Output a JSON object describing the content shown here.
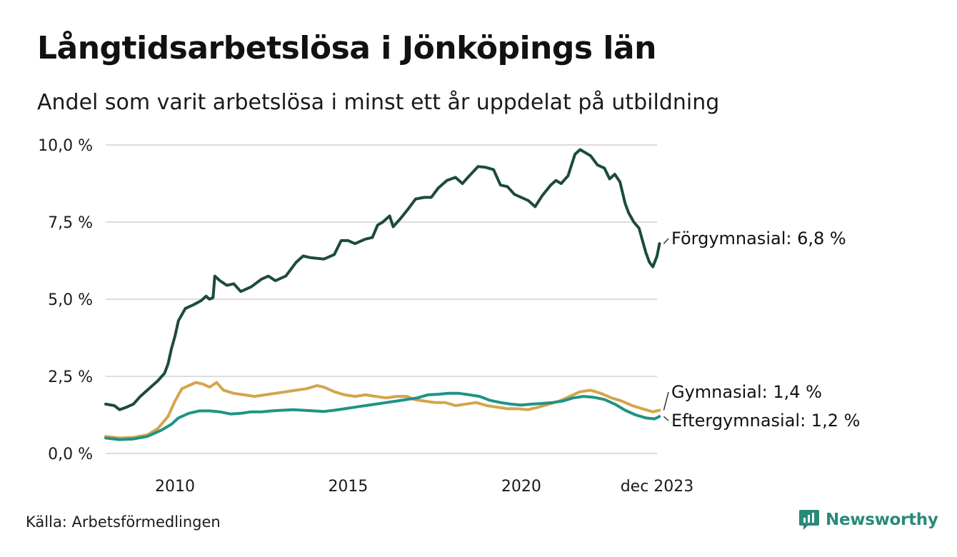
{
  "title": "Långtidsarbetslösa i Jönköpings län",
  "subtitle": "Andel som varit arbetslösa i minst ett år uppdelat på utbildning",
  "source": "Källa: Arbetsförmedlingen",
  "brand": {
    "name": "Newsworthy",
    "icon": "newsworthy-logo-icon",
    "color": "#2a8a78"
  },
  "chart_data": {
    "type": "line",
    "title": "Långtidsarbetslösa i Jönköpings län",
    "xlabel": "",
    "ylabel": "",
    "ylim": [
      0,
      10
    ],
    "xlim": [
      2008.0,
      2023.92
    ],
    "grid": true,
    "y_ticks": [
      {
        "value": 0,
        "label": "0,0 %"
      },
      {
        "value": 2.5,
        "label": "2,5 %"
      },
      {
        "value": 5,
        "label": "5,0 %"
      },
      {
        "value": 7.5,
        "label": "7,5 %"
      },
      {
        "value": 10,
        "label": "10,0 %"
      }
    ],
    "x_ticks": [
      {
        "value": 2010,
        "label": "2010"
      },
      {
        "value": 2015,
        "label": "2015"
      },
      {
        "value": 2020,
        "label": "2020"
      },
      {
        "value": 2023.92,
        "label": "dec 2023"
      }
    ],
    "series": [
      {
        "name": "Förgymnasial",
        "end_label": "Förgymnasial: 6,8 %",
        "color": "#1d4a40",
        "points": [
          [
            2008.0,
            1.6
          ],
          [
            2008.25,
            1.55
          ],
          [
            2008.4,
            1.42
          ],
          [
            2008.6,
            1.5
          ],
          [
            2008.8,
            1.6
          ],
          [
            2009.0,
            1.85
          ],
          [
            2009.25,
            2.1
          ],
          [
            2009.5,
            2.35
          ],
          [
            2009.7,
            2.6
          ],
          [
            2009.8,
            2.9
          ],
          [
            2009.9,
            3.4
          ],
          [
            2010.0,
            3.8
          ],
          [
            2010.1,
            4.3
          ],
          [
            2010.3,
            4.7
          ],
          [
            2010.5,
            4.8
          ],
          [
            2010.75,
            4.95
          ],
          [
            2010.9,
            5.1
          ],
          [
            2011.0,
            5.0
          ],
          [
            2011.1,
            5.05
          ],
          [
            2011.15,
            5.75
          ],
          [
            2011.3,
            5.6
          ],
          [
            2011.5,
            5.45
          ],
          [
            2011.7,
            5.5
          ],
          [
            2011.9,
            5.25
          ],
          [
            2012.2,
            5.4
          ],
          [
            2012.5,
            5.65
          ],
          [
            2012.7,
            5.75
          ],
          [
            2012.9,
            5.6
          ],
          [
            2013.2,
            5.75
          ],
          [
            2013.5,
            6.2
          ],
          [
            2013.7,
            6.4
          ],
          [
            2013.9,
            6.35
          ],
          [
            2014.3,
            6.3
          ],
          [
            2014.6,
            6.45
          ],
          [
            2014.8,
            6.9
          ],
          [
            2015.0,
            6.9
          ],
          [
            2015.2,
            6.8
          ],
          [
            2015.5,
            6.95
          ],
          [
            2015.7,
            7.0
          ],
          [
            2015.85,
            7.4
          ],
          [
            2016.0,
            7.5
          ],
          [
            2016.2,
            7.7
          ],
          [
            2016.3,
            7.35
          ],
          [
            2016.5,
            7.6
          ],
          [
            2016.75,
            7.95
          ],
          [
            2016.95,
            8.25
          ],
          [
            2017.2,
            8.3
          ],
          [
            2017.4,
            8.3
          ],
          [
            2017.6,
            8.6
          ],
          [
            2017.85,
            8.85
          ],
          [
            2018.1,
            8.95
          ],
          [
            2018.3,
            8.75
          ],
          [
            2018.5,
            9.0
          ],
          [
            2018.75,
            9.3
          ],
          [
            2018.95,
            9.28
          ],
          [
            2019.2,
            9.2
          ],
          [
            2019.4,
            8.7
          ],
          [
            2019.6,
            8.65
          ],
          [
            2019.8,
            8.4
          ],
          [
            2020.0,
            8.3
          ],
          [
            2020.2,
            8.2
          ],
          [
            2020.4,
            8.0
          ],
          [
            2020.6,
            8.35
          ],
          [
            2020.85,
            8.7
          ],
          [
            2021.0,
            8.85
          ],
          [
            2021.15,
            8.75
          ],
          [
            2021.35,
            9.0
          ],
          [
            2021.55,
            9.7
          ],
          [
            2021.7,
            9.85
          ],
          [
            2021.85,
            9.75
          ],
          [
            2022.0,
            9.65
          ],
          [
            2022.2,
            9.35
          ],
          [
            2022.4,
            9.25
          ],
          [
            2022.55,
            8.9
          ],
          [
            2022.7,
            9.05
          ],
          [
            2022.85,
            8.8
          ],
          [
            2023.0,
            8.1
          ],
          [
            2023.1,
            7.8
          ],
          [
            2023.25,
            7.5
          ],
          [
            2023.4,
            7.3
          ],
          [
            2023.5,
            6.9
          ],
          [
            2023.6,
            6.5
          ],
          [
            2023.7,
            6.2
          ],
          [
            2023.8,
            6.05
          ],
          [
            2023.92,
            6.4
          ],
          [
            2023.99,
            6.8
          ]
        ]
      },
      {
        "name": "Gymnasial",
        "end_label": "Gymnasial: 1,4 %",
        "color": "#d4a54a",
        "points": [
          [
            2008.0,
            0.55
          ],
          [
            2008.4,
            0.5
          ],
          [
            2008.8,
            0.52
          ],
          [
            2009.2,
            0.6
          ],
          [
            2009.5,
            0.8
          ],
          [
            2009.8,
            1.2
          ],
          [
            2010.0,
            1.7
          ],
          [
            2010.2,
            2.1
          ],
          [
            2010.4,
            2.2
          ],
          [
            2010.6,
            2.3
          ],
          [
            2010.8,
            2.25
          ],
          [
            2011.0,
            2.15
          ],
          [
            2011.2,
            2.3
          ],
          [
            2011.4,
            2.05
          ],
          [
            2011.7,
            1.95
          ],
          [
            2012.0,
            1.9
          ],
          [
            2012.3,
            1.85
          ],
          [
            2012.6,
            1.9
          ],
          [
            2012.9,
            1.95
          ],
          [
            2013.2,
            2.0
          ],
          [
            2013.5,
            2.05
          ],
          [
            2013.8,
            2.1
          ],
          [
            2014.1,
            2.2
          ],
          [
            2014.3,
            2.15
          ],
          [
            2014.6,
            2.0
          ],
          [
            2014.9,
            1.9
          ],
          [
            2015.2,
            1.85
          ],
          [
            2015.5,
            1.9
          ],
          [
            2015.8,
            1.85
          ],
          [
            2016.1,
            1.8
          ],
          [
            2016.4,
            1.85
          ],
          [
            2016.7,
            1.85
          ],
          [
            2016.9,
            1.75
          ],
          [
            2017.2,
            1.7
          ],
          [
            2017.5,
            1.65
          ],
          [
            2017.8,
            1.65
          ],
          [
            2018.1,
            1.55
          ],
          [
            2018.4,
            1.6
          ],
          [
            2018.7,
            1.65
          ],
          [
            2019.0,
            1.55
          ],
          [
            2019.3,
            1.5
          ],
          [
            2019.6,
            1.45
          ],
          [
            2019.9,
            1.45
          ],
          [
            2020.2,
            1.42
          ],
          [
            2020.5,
            1.5
          ],
          [
            2020.8,
            1.6
          ],
          [
            2021.1,
            1.7
          ],
          [
            2021.4,
            1.85
          ],
          [
            2021.7,
            2.0
          ],
          [
            2022.0,
            2.05
          ],
          [
            2022.3,
            1.95
          ],
          [
            2022.6,
            1.8
          ],
          [
            2022.9,
            1.7
          ],
          [
            2023.2,
            1.55
          ],
          [
            2023.5,
            1.45
          ],
          [
            2023.8,
            1.35
          ],
          [
            2023.99,
            1.4
          ]
        ]
      },
      {
        "name": "Eftergymnasial",
        "end_label": "Eftergymnasial: 1,2 %",
        "color": "#1e9485",
        "points": [
          [
            2008.0,
            0.5
          ],
          [
            2008.4,
            0.45
          ],
          [
            2008.8,
            0.47
          ],
          [
            2009.2,
            0.55
          ],
          [
            2009.6,
            0.75
          ],
          [
            2009.9,
            0.95
          ],
          [
            2010.1,
            1.15
          ],
          [
            2010.4,
            1.3
          ],
          [
            2010.7,
            1.38
          ],
          [
            2011.0,
            1.38
          ],
          [
            2011.3,
            1.35
          ],
          [
            2011.6,
            1.28
          ],
          [
            2011.9,
            1.3
          ],
          [
            2012.2,
            1.35
          ],
          [
            2012.5,
            1.35
          ],
          [
            2012.8,
            1.38
          ],
          [
            2013.1,
            1.4
          ],
          [
            2013.4,
            1.42
          ],
          [
            2013.7,
            1.4
          ],
          [
            2014.0,
            1.38
          ],
          [
            2014.3,
            1.36
          ],
          [
            2014.6,
            1.4
          ],
          [
            2014.9,
            1.45
          ],
          [
            2015.2,
            1.5
          ],
          [
            2015.5,
            1.55
          ],
          [
            2015.8,
            1.6
          ],
          [
            2016.1,
            1.65
          ],
          [
            2016.4,
            1.7
          ],
          [
            2016.7,
            1.75
          ],
          [
            2017.0,
            1.8
          ],
          [
            2017.3,
            1.9
          ],
          [
            2017.6,
            1.92
          ],
          [
            2017.9,
            1.95
          ],
          [
            2018.2,
            1.95
          ],
          [
            2018.5,
            1.9
          ],
          [
            2018.8,
            1.85
          ],
          [
            2019.1,
            1.72
          ],
          [
            2019.4,
            1.65
          ],
          [
            2019.7,
            1.6
          ],
          [
            2020.0,
            1.57
          ],
          [
            2020.3,
            1.6
          ],
          [
            2020.6,
            1.62
          ],
          [
            2020.9,
            1.65
          ],
          [
            2021.2,
            1.7
          ],
          [
            2021.5,
            1.8
          ],
          [
            2021.8,
            1.85
          ],
          [
            2022.1,
            1.82
          ],
          [
            2022.4,
            1.75
          ],
          [
            2022.7,
            1.6
          ],
          [
            2023.0,
            1.4
          ],
          [
            2023.3,
            1.25
          ],
          [
            2023.6,
            1.15
          ],
          [
            2023.85,
            1.12
          ],
          [
            2023.99,
            1.2
          ]
        ]
      }
    ]
  }
}
